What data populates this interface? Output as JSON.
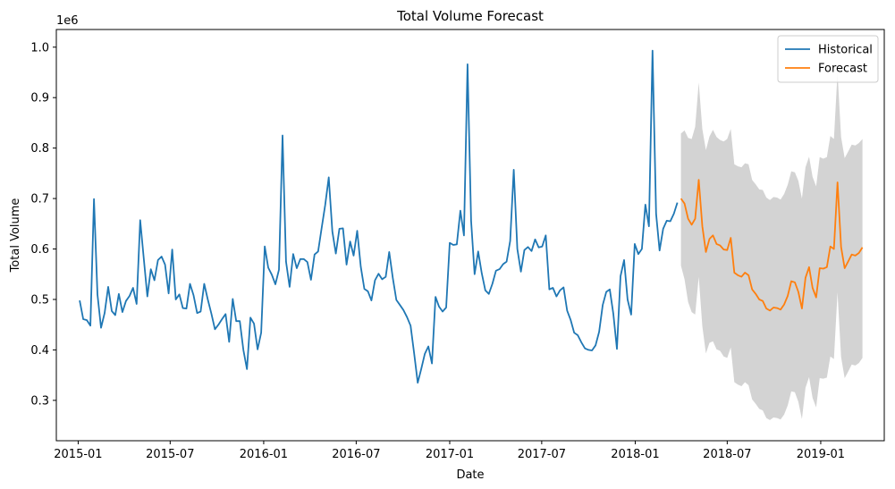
{
  "chart_data": {
    "type": "line",
    "title": "Total Volume Forecast",
    "xlabel": "Date",
    "ylabel": "Total Volume",
    "y_scale_label": "1e6",
    "xlim": [
      "2014-11-19",
      "2019-05-06"
    ],
    "ylim": [
      0.22,
      1.035
    ],
    "x_ticks": [
      {
        "date": "2015-01-01",
        "label": "2015-01"
      },
      {
        "date": "2015-07-01",
        "label": "2015-07"
      },
      {
        "date": "2016-01-01",
        "label": "2016-01"
      },
      {
        "date": "2016-07-01",
        "label": "2016-07"
      },
      {
        "date": "2017-01-01",
        "label": "2017-01"
      },
      {
        "date": "2017-07-01",
        "label": "2017-07"
      },
      {
        "date": "2018-01-01",
        "label": "2018-01"
      },
      {
        "date": "2018-07-01",
        "label": "2018-07"
      },
      {
        "date": "2019-01-01",
        "label": "2019-01"
      }
    ],
    "y_ticks": [
      {
        "value": 0.3,
        "label": "0.3"
      },
      {
        "value": 0.4,
        "label": "0.4"
      },
      {
        "value": 0.5,
        "label": "0.5"
      },
      {
        "value": 0.6,
        "label": "0.6"
      },
      {
        "value": 0.7,
        "label": "0.7"
      },
      {
        "value": 0.8,
        "label": "0.8"
      },
      {
        "value": 0.9,
        "label": "0.9"
      },
      {
        "value": 1.0,
        "label": "1.0"
      }
    ],
    "legend": {
      "position": "top-right"
    },
    "grid": false,
    "series": [
      {
        "name": "Historical",
        "color": "#1f77b4",
        "start_date": "2015-01-04",
        "step_days": 7,
        "values": [
          0.498,
          0.461,
          0.459,
          0.448,
          0.699,
          0.51,
          0.444,
          0.473,
          0.525,
          0.477,
          0.469,
          0.511,
          0.475,
          0.497,
          0.507,
          0.523,
          0.491,
          0.657,
          0.581,
          0.506,
          0.56,
          0.538,
          0.578,
          0.585,
          0.569,
          0.512,
          0.599,
          0.5,
          0.51,
          0.483,
          0.482,
          0.531,
          0.508,
          0.473,
          0.476,
          0.531,
          0.5,
          0.472,
          0.441,
          0.45,
          0.461,
          0.471,
          0.416,
          0.501,
          0.457,
          0.457,
          0.4,
          0.362,
          0.464,
          0.452,
          0.401,
          0.434,
          0.605,
          0.563,
          0.549,
          0.53,
          0.559,
          0.825,
          0.575,
          0.525,
          0.59,
          0.562,
          0.58,
          0.58,
          0.574,
          0.539,
          0.589,
          0.595,
          0.641,
          0.687,
          0.742,
          0.635,
          0.591,
          0.64,
          0.641,
          0.569,
          0.615,
          0.587,
          0.636,
          0.565,
          0.521,
          0.516,
          0.498,
          0.538,
          0.551,
          0.54,
          0.545,
          0.594,
          0.543,
          0.499,
          0.489,
          0.479,
          0.465,
          0.448,
          0.393,
          0.335,
          0.362,
          0.392,
          0.407,
          0.373,
          0.505,
          0.486,
          0.476,
          0.484,
          0.612,
          0.608,
          0.609,
          0.676,
          0.627,
          0.966,
          0.656,
          0.55,
          0.595,
          0.552,
          0.518,
          0.511,
          0.531,
          0.557,
          0.56,
          0.57,
          0.575,
          0.616,
          0.757,
          0.6,
          0.555,
          0.598,
          0.604,
          0.596,
          0.619,
          0.603,
          0.605,
          0.627,
          0.52,
          0.523,
          0.506,
          0.518,
          0.524,
          0.478,
          0.459,
          0.434,
          0.429,
          0.415,
          0.403,
          0.4,
          0.399,
          0.409,
          0.436,
          0.489,
          0.515,
          0.52,
          0.471,
          0.402,
          0.546,
          0.578,
          0.5,
          0.47,
          0.61,
          0.59,
          0.6,
          0.688,
          0.645,
          0.993,
          0.67,
          0.597,
          0.64,
          0.656,
          0.655,
          0.67,
          0.692
        ]
      },
      {
        "name": "Forecast",
        "color": "#ff7f0e",
        "band_color": "#d3d3d3",
        "start_date": "2018-04-01",
        "step_days": 7,
        "values": [
          0.7,
          0.69,
          0.66,
          0.648,
          0.66,
          0.737,
          0.645,
          0.594,
          0.62,
          0.627,
          0.61,
          0.607,
          0.599,
          0.598,
          0.622,
          0.553,
          0.548,
          0.545,
          0.553,
          0.548,
          0.52,
          0.511,
          0.5,
          0.497,
          0.482,
          0.478,
          0.484,
          0.483,
          0.48,
          0.49,
          0.507,
          0.536,
          0.534,
          0.515,
          0.482,
          0.543,
          0.564,
          0.523,
          0.504,
          0.562,
          0.561,
          0.564,
          0.605,
          0.6,
          0.732,
          0.604,
          0.562,
          0.575,
          0.589,
          0.587,
          0.592,
          0.603
        ],
        "upper": [
          0.829,
          0.835,
          0.82,
          0.818,
          0.842,
          0.93,
          0.838,
          0.796,
          0.823,
          0.836,
          0.822,
          0.816,
          0.813,
          0.818,
          0.838,
          0.768,
          0.764,
          0.762,
          0.77,
          0.768,
          0.737,
          0.728,
          0.718,
          0.717,
          0.702,
          0.697,
          0.703,
          0.702,
          0.698,
          0.709,
          0.727,
          0.754,
          0.752,
          0.735,
          0.7,
          0.762,
          0.783,
          0.743,
          0.724,
          0.782,
          0.779,
          0.782,
          0.824,
          0.818,
          0.95,
          0.822,
          0.78,
          0.793,
          0.807,
          0.805,
          0.81,
          0.818
        ],
        "lower": [
          0.567,
          0.54,
          0.495,
          0.475,
          0.47,
          0.545,
          0.447,
          0.393,
          0.414,
          0.417,
          0.401,
          0.398,
          0.387,
          0.384,
          0.405,
          0.336,
          0.331,
          0.328,
          0.336,
          0.33,
          0.302,
          0.293,
          0.283,
          0.28,
          0.265,
          0.261,
          0.266,
          0.265,
          0.262,
          0.272,
          0.29,
          0.318,
          0.316,
          0.297,
          0.263,
          0.325,
          0.346,
          0.305,
          0.286,
          0.344,
          0.343,
          0.345,
          0.387,
          0.382,
          0.514,
          0.386,
          0.344,
          0.357,
          0.371,
          0.369,
          0.374,
          0.384
        ]
      }
    ]
  }
}
